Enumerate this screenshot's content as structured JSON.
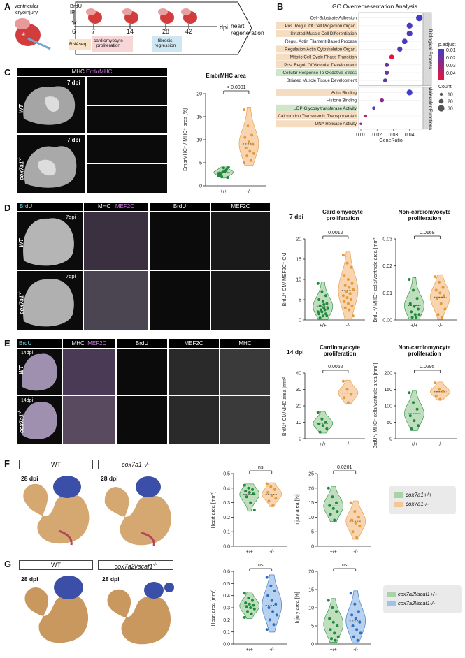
{
  "panels": {
    "A": "A",
    "B": "B",
    "C": "C",
    "D": "D",
    "E": "E",
    "F": "F",
    "G": "G"
  },
  "timeline": {
    "injury_label": "ventricular\ncryoinjury",
    "brdu_label": "BrdU\nIP",
    "ticks": [
      "6",
      "7",
      "14",
      "28",
      "42"
    ],
    "unit": "dpi",
    "end_label": "heart\nregeneration",
    "box_rnaseq": "RNAseq",
    "box_prolif": "cardiomyocyte\nproliferation",
    "box_fibrosis": "fibrosis\nregression"
  },
  "go": {
    "title": "GO Overrepresentation Analysis",
    "terms_bp": [
      {
        "label": "Cell-Substrate Adhesion",
        "ratio": 0.046,
        "count": 30,
        "padj": 0.001,
        "hl": "none"
      },
      {
        "label": "Pos. Regul. Of Cell Projection Organ.",
        "ratio": 0.04,
        "count": 26,
        "padj": 0.003,
        "hl": "orange"
      },
      {
        "label": "Striated Muscle Cell Differentiation",
        "ratio": 0.04,
        "count": 26,
        "padj": 0.003,
        "hl": "orange"
      },
      {
        "label": "Regul. Actin Filament-Based Process",
        "ratio": 0.037,
        "count": 24,
        "padj": 0.004,
        "hl": "none"
      },
      {
        "label": "Regulation Actin Cytoskeleton Organ.",
        "ratio": 0.034,
        "count": 22,
        "padj": 0.006,
        "hl": "orange"
      },
      {
        "label": "Mitotic Cell Cycle Phase Transition",
        "ratio": 0.029,
        "count": 20,
        "padj": 0.042,
        "hl": "orange"
      },
      {
        "label": "Pos. Regul. Of Vascular Development",
        "ratio": 0.026,
        "count": 17,
        "padj": 0.012,
        "hl": "orange"
      },
      {
        "label": "Cellular Response To Oxidative Stress",
        "ratio": 0.026,
        "count": 17,
        "padj": 0.01,
        "hl": "green"
      },
      {
        "label": "Striated Muscle Tissue Development",
        "ratio": 0.025,
        "count": 16,
        "padj": 0.008,
        "hl": "none"
      }
    ],
    "terms_mf": [
      {
        "label": "Actin Binding",
        "ratio": 0.04,
        "count": 26,
        "padj": 0.001,
        "hl": "orange"
      },
      {
        "label": "Histone Binding",
        "ratio": 0.023,
        "count": 15,
        "padj": 0.02,
        "hl": "none"
      },
      {
        "label": "UDP-Glycosyltransferase Activity",
        "ratio": 0.018,
        "count": 12,
        "padj": 0.004,
        "hl": "green"
      },
      {
        "label": "Calcium Ion Transmemb. Transporter Act",
        "ratio": 0.013,
        "count": 9,
        "padj": 0.03,
        "hl": "orange"
      },
      {
        "label": "DNA Helicase Activity",
        "ratio": 0.01,
        "count": 6,
        "padj": 0.02,
        "hl": "orange"
      }
    ],
    "group_bp": "Biological Process",
    "group_mf": "Molecular Functions",
    "xlabel": "GeneRatio",
    "xticks": [
      "0.01",
      "0.02",
      "0.03",
      "0.04"
    ],
    "legend_padj_title": "p.adjust",
    "legend_padj_ticks": [
      "0.01",
      "0.02",
      "0.03",
      "0.04"
    ],
    "legend_count_title": "Count",
    "legend_count_ticks": [
      "10",
      "20",
      "30"
    ]
  },
  "C": {
    "header": "MHC",
    "header2": "EmbrMHC",
    "row1": "WT",
    "row2": "cox7a1",
    "row2_sup": "-/-",
    "dpi": "7 dpi",
    "chart_title": "EmbrMHC area",
    "pvalue": "< 0.0001",
    "ylabel": "EmbrMHC⁺ / MHC⁺ area [%]",
    "yticks": [
      "0",
      "5",
      "10",
      "15",
      "20"
    ],
    "groups": [
      "+/+",
      "-/-"
    ]
  },
  "D": {
    "headers": [
      "BrdU",
      "MHC",
      "MEF2C",
      "BrdU",
      "MEF2C"
    ],
    "row1": "WT",
    "row2": "cox7a1",
    "row2_sup": "-/-",
    "dpi": "7dpi",
    "time": "7 dpi",
    "t1": "Cardiomyocyte\nproliferation",
    "t2": "Non-cardiomyocyte\nproliferation",
    "p1": "0.0012",
    "p2": "0.0169",
    "y1": "BrdU⁺ CM/ MEF2C⁺ CM",
    "y2": "BrdU⁺/ MHC⁻ cells/ventricle area [mm²]",
    "y1ticks": [
      "0",
      "5",
      "10",
      "15",
      "20"
    ],
    "y2ticks": [
      "0.00",
      "0.01",
      "0.02",
      "0.03"
    ],
    "groups": [
      "+/+",
      "-/-"
    ]
  },
  "E": {
    "headers": [
      "BrdU",
      "MHC",
      "MEF2C",
      "BrdU",
      "MEF2C",
      "MHC"
    ],
    "row1": "WT",
    "row2": "cox7a1",
    "row2_sup": "-/-",
    "dpi": "14dpi",
    "time": "14 dpi",
    "t1": "Cardiomyocyte\nproliferation",
    "t2": "Non-cardiomyocyte\nproliferation",
    "p1": "0.0062",
    "p2": "0.0295",
    "y1": "BrdU⁺ CM/MHC area [mm²]",
    "y2": "BrdU⁺/ MHC⁻ cells/ventricle area [mm²]",
    "y1ticks": [
      "0",
      "10",
      "20",
      "30",
      "40"
    ],
    "y2ticks": [
      "0",
      "50",
      "100",
      "150",
      "200"
    ],
    "groups": [
      "+/+",
      "-/-"
    ]
  },
  "F": {
    "wt": "WT",
    "ko": "cox7a1 -/-",
    "dpi": "28 dpi",
    "p1": "ns",
    "p2": "0.0201",
    "y1": "Heart area [mm²]",
    "y2": "Injury area [%]",
    "y1ticks": [
      "0.0",
      "0.1",
      "0.2",
      "0.3",
      "0.4",
      "0.5"
    ],
    "y2ticks": [
      "0",
      "5",
      "10",
      "15",
      "20",
      "25"
    ],
    "groups": [
      "+/+",
      "-/-"
    ],
    "legend": [
      "cox7a1+/+",
      "cox7a1-/-"
    ]
  },
  "G": {
    "wt": "WT",
    "ko": "cox7a2l/scaf1",
    "ko_sup": "-/-",
    "dpi": "28 dpi",
    "p1": "ns",
    "p2": "ns",
    "y1": "Heart area [mm²]",
    "y2": "Injury area [%]",
    "y1ticks": [
      "0.0",
      "0.1",
      "0.2",
      "0.3",
      "0.4",
      "0.5",
      "0.6"
    ],
    "y2ticks": [
      "0",
      "5",
      "10",
      "15",
      "20"
    ],
    "groups": [
      "+/+",
      "-/-"
    ],
    "legend": [
      "cox7a2l/scaf1+/+",
      "cox7a2l/scaf1-/-"
    ]
  },
  "colors": {
    "wt_fill": "#a9d3a7",
    "wt_dot": "#1e8a3c",
    "ko_fill": "#f6c796",
    "ko_dot": "#e39a3d",
    "ko2_fill": "#9fc2ea",
    "ko2_dot": "#2f6fc2",
    "hl_orange": "#f6dcc0",
    "hl_green": "#cfe6c8"
  },
  "chart_data": [
    {
      "type": "scatter",
      "panel": "C",
      "title": "EmbrMHC area",
      "ylabel": "EmbrMHC⁺ / MHC⁺ area [%]",
      "ylim": [
        0,
        20
      ],
      "series": [
        {
          "name": "+/+",
          "values": [
            2.2,
            3.0,
            3.5,
            2.8,
            3.9,
            1.8,
            2.5,
            3.2,
            4.0,
            2.0,
            3.3,
            2.6
          ]
        },
        {
          "name": "-/-",
          "values": [
            16.5,
            13,
            11,
            10.5,
            9.5,
            9,
            8.2,
            7.5,
            7,
            6.5,
            5.5,
            5
          ]
        }
      ]
    },
    {
      "type": "scatter",
      "panel": "D1",
      "title": "Cardiomyocyte proliferation",
      "ylabel": "BrdU⁺ CM/ MEF2C⁺ CM",
      "ylim": [
        0,
        20
      ],
      "series": [
        {
          "name": "+/+",
          "values": [
            9,
            7,
            6,
            5,
            4.5,
            4,
            3.5,
            3,
            3,
            2.5,
            2.5,
            2,
            2,
            1.5,
            1.5,
            1,
            1,
            0.5,
            3.8,
            2.8
          ]
        },
        {
          "name": "-/-",
          "values": [
            16,
            14,
            13,
            11,
            10,
            9,
            8.5,
            8,
            7.5,
            7,
            6.5,
            6,
            5.5,
            5,
            4.5,
            4,
            3.5,
            3,
            2.5,
            1
          ]
        }
      ]
    },
    {
      "type": "scatter",
      "panel": "D2",
      "title": "Non-cardiomyocyte proliferation",
      "ylabel": "BrdU⁺/ MHC⁻ cells/ventricle area [mm²]",
      "ylim": [
        0,
        0.03
      ],
      "series": [
        {
          "name": "+/+",
          "values": [
            0.015,
            0.011,
            0.008,
            0.006,
            0.005,
            0.004,
            0.003,
            0.002,
            0.002,
            0.001,
            0.001
          ]
        },
        {
          "name": "-/-",
          "values": [
            0.016,
            0.014,
            0.012,
            0.011,
            0.01,
            0.009,
            0.008,
            0.006,
            0.004,
            0.002,
            0.001
          ]
        }
      ]
    },
    {
      "type": "scatter",
      "panel": "E1",
      "title": "Cardiomyocyte proliferation",
      "ylabel": "BrdU⁺ CM/MHC area [mm²]",
      "ylim": [
        0,
        40
      ],
      "series": [
        {
          "name": "+/+",
          "values": [
            16,
            12,
            10,
            9,
            8,
            6,
            4
          ]
        },
        {
          "name": "-/-",
          "values": [
            35,
            30,
            27,
            25,
            22
          ]
        }
      ]
    },
    {
      "type": "scatter",
      "panel": "E2",
      "title": "Non-cardiomyocyte proliferation",
      "ylabel": "BrdU⁺/ MHC⁻ cells/ventricle area [mm²]",
      "ylim": [
        0,
        200
      ],
      "series": [
        {
          "name": "+/+",
          "values": [
            140,
            110,
            90,
            70,
            55,
            40,
            30
          ]
        },
        {
          "name": "-/-",
          "values": [
            170,
            150,
            145,
            130,
            120
          ]
        }
      ]
    },
    {
      "type": "scatter",
      "panel": "F1",
      "ylabel": "Heart area [mm²]",
      "ylim": [
        0,
        0.5
      ],
      "series": [
        {
          "name": "+/+",
          "values": [
            0.42,
            0.4,
            0.39,
            0.38,
            0.37,
            0.36,
            0.34,
            0.3,
            0.25
          ]
        },
        {
          "name": "-/-",
          "values": [
            0.43,
            0.41,
            0.39,
            0.37,
            0.35,
            0.33,
            0.31,
            0.28
          ]
        }
      ]
    },
    {
      "type": "scatter",
      "panel": "F2",
      "ylabel": "Injury area [%]",
      "ylim": [
        0,
        25
      ],
      "series": [
        {
          "name": "+/+",
          "values": [
            20,
            17,
            15,
            14,
            13,
            12,
            11,
            9
          ]
        },
        {
          "name": "-/-",
          "values": [
            15,
            12,
            10,
            9,
            8,
            7,
            5,
            3
          ]
        }
      ]
    },
    {
      "type": "scatter",
      "panel": "G1",
      "ylabel": "Heart area [mm²]",
      "ylim": [
        0,
        0.6
      ],
      "series": [
        {
          "name": "+/+",
          "values": [
            0.42,
            0.38,
            0.36,
            0.34,
            0.33,
            0.32,
            0.31,
            0.3,
            0.29,
            0.27,
            0.25,
            0.22
          ]
        },
        {
          "name": "-/-",
          "values": [
            0.55,
            0.48,
            0.44,
            0.4,
            0.36,
            0.33,
            0.3,
            0.27,
            0.24,
            0.2,
            0.16,
            0.12
          ]
        }
      ]
    },
    {
      "type": "scatter",
      "panel": "G2",
      "ylabel": "Injury area [%]",
      "ylim": [
        0,
        20
      ],
      "series": [
        {
          "name": "+/+",
          "values": [
            12,
            10,
            9,
            7,
            6,
            5,
            4,
            3,
            2,
            1.5,
            1
          ]
        },
        {
          "name": "-/-",
          "values": [
            14,
            11,
            9,
            8,
            7,
            6,
            5,
            4,
            3,
            2,
            1
          ]
        }
      ]
    }
  ]
}
